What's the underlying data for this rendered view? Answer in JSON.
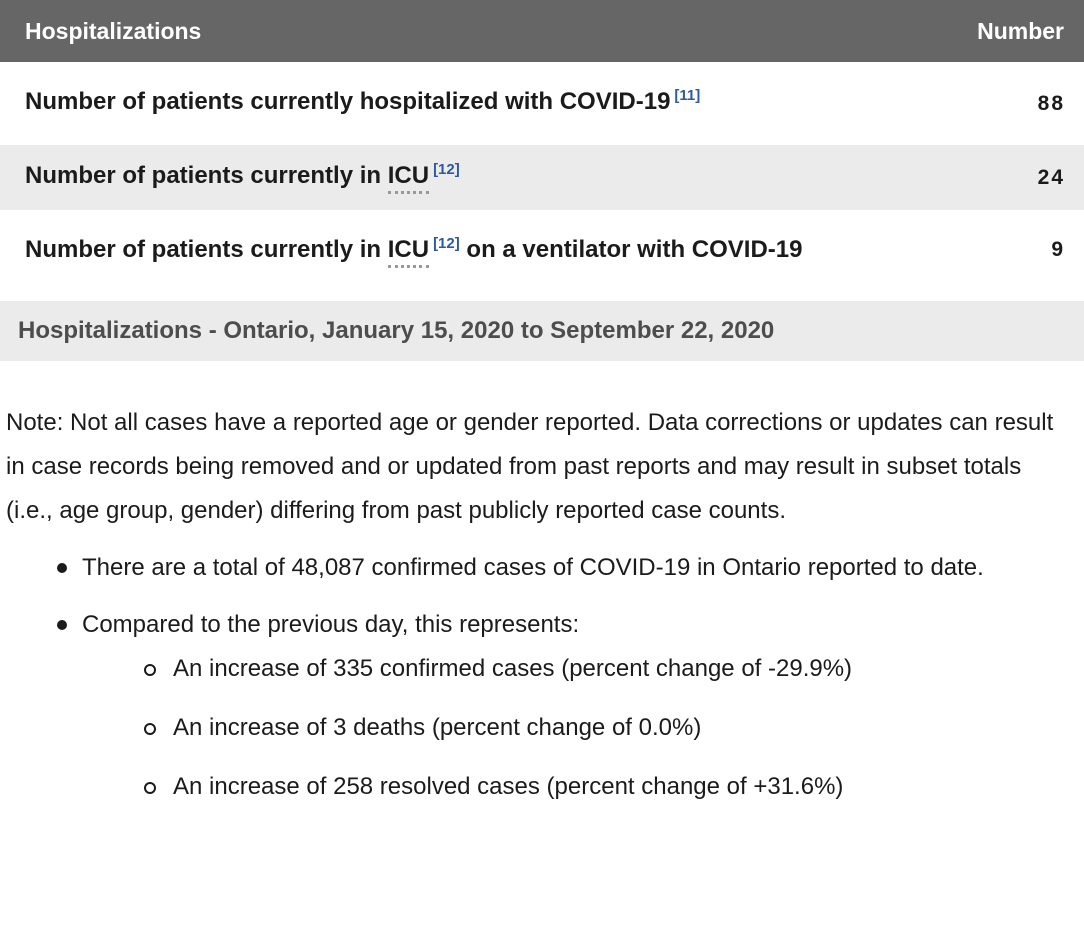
{
  "colors": {
    "header_bg": "#666666",
    "zebra_row_bg": "#ebebeb",
    "footnote_link": "#2b5aa5",
    "caption_text": "#4d4d4d",
    "body_text": "#1b1b1b"
  },
  "table": {
    "header": {
      "title": "Hospitalizations",
      "number_label": "Number"
    },
    "rows": [
      {
        "text": "Number of patients currently hospitalized with COVID-19",
        "ref": "[11]",
        "value": "88"
      },
      {
        "text": "Number of patients currently in ",
        "abbr": "ICU",
        "ref": "[12]",
        "text_after": "",
        "value": "24"
      },
      {
        "text": "Number of patients currently in ",
        "abbr": "ICU",
        "ref": "[12]",
        "text_after": " on a ventilator with COVID-19",
        "value": "9"
      }
    ],
    "caption": "Hospitalizations - Ontario, January 15, 2020 to September 22, 2020"
  },
  "note": "Note: Not all cases have a reported age or gender reported. Data corrections or updates can result in case records being removed and or updated from past reports and may result in subset totals (i.e., age group, gender) differing from past publicly reported case counts.",
  "bullets": [
    {
      "text": "There are a total of 48,087 confirmed cases of COVID-19 in Ontario reported to date."
    },
    {
      "text": "Compared to the previous day, this represents:",
      "sub_items": [
        "An increase of 335 confirmed cases (percent change of -29.9%)",
        "An increase of 3 deaths (percent change of 0.0%)",
        "An increase of 258 resolved cases (percent change of +31.6%)"
      ]
    }
  ]
}
